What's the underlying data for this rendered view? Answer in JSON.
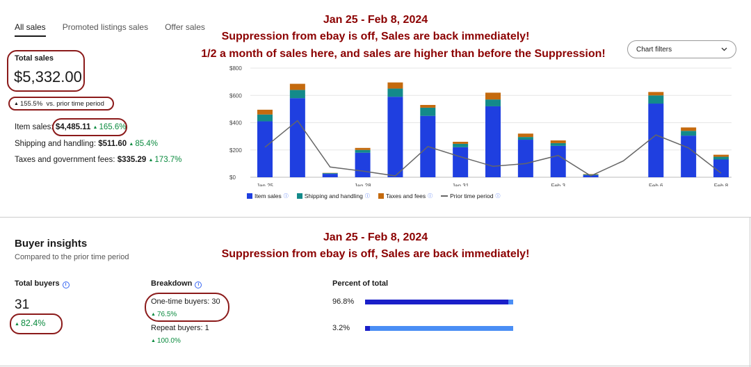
{
  "tabs": [
    {
      "label": "All sales",
      "active": true
    },
    {
      "label": "Promoted listings sales",
      "active": false
    },
    {
      "label": "Offer sales",
      "active": false
    }
  ],
  "annotation_top": {
    "line1": "Jan 25 - Feb 8, 2024",
    "line2": "Suppression from ebay is off, Sales are back immediately!",
    "line3": "1/2 a month of sales here, and sales are higher than before the Suppression!"
  },
  "annotation_bottom": {
    "line1": "Jan 25 - Feb 8, 2024",
    "line2": "Suppression from ebay is off, Sales are back immediately!"
  },
  "sales": {
    "total_label": "Total sales",
    "total_value": "$5,332.00",
    "change_pct": "155.5%",
    "change_suffix": "vs. prior time period",
    "item_label": "Item sales:",
    "item_value": "$4,485.11",
    "item_pct": "165.6%",
    "shipping_label": "Shipping and handling:",
    "shipping_value": "$511.60",
    "shipping_pct": "85.4%",
    "taxes_label": "Taxes and government fees:",
    "taxes_value": "$335.29",
    "taxes_pct": "173.7%"
  },
  "chart_filters": {
    "label": "Chart filters",
    "icon": "chevron-down-icon"
  },
  "colors": {
    "item": "#1f3fe0",
    "shipping": "#138a8a",
    "taxes": "#c46a0e",
    "prior": "#666666",
    "up": "#0a8a3e",
    "annot": "#8b0000"
  },
  "chart_data": {
    "type": "bar",
    "stacked": true,
    "ylim": [
      0,
      800
    ],
    "yticks": [
      "$0",
      "$200",
      "$400",
      "$600",
      "$800"
    ],
    "ytick_values": [
      0,
      200,
      400,
      600,
      800
    ],
    "x_tick_labels": [
      {
        "index": 0,
        "label": "Jan 25"
      },
      {
        "index": 3,
        "label": "Jan 28"
      },
      {
        "index": 6,
        "label": "Jan 31"
      },
      {
        "index": 9,
        "label": "Feb 3"
      },
      {
        "index": 12,
        "label": "Feb 6"
      },
      {
        "index": 14,
        "label": "Feb 8"
      }
    ],
    "categories": [
      "Jan 25",
      "Jan 26",
      "Jan 27",
      "Jan 28",
      "Jan 29",
      "Jan 30",
      "Jan 31",
      "Feb 1",
      "Feb 2",
      "Feb 3",
      "Feb 4",
      "Feb 5",
      "Feb 6",
      "Feb 7",
      "Feb 8"
    ],
    "series": [
      {
        "name": "Item sales",
        "values": [
          410,
          580,
          25,
          180,
          590,
          450,
          220,
          520,
          275,
          230,
          15,
          0,
          540,
          305,
          130
        ]
      },
      {
        "name": "Shipping and handling",
        "values": [
          50,
          60,
          5,
          20,
          60,
          60,
          25,
          50,
          20,
          20,
          5,
          0,
          60,
          35,
          20
        ]
      },
      {
        "name": "Taxes and fees",
        "values": [
          35,
          45,
          2,
          15,
          45,
          20,
          15,
          50,
          25,
          20,
          3,
          0,
          25,
          25,
          15
        ]
      }
    ],
    "prior": {
      "name": "Prior time period",
      "values": [
        220,
        415,
        75,
        45,
        10,
        225,
        150,
        80,
        100,
        160,
        10,
        120,
        310,
        215,
        30
      ]
    }
  },
  "buyers": {
    "title": "Buyer insights",
    "subtitle": "Compared to the prior time period",
    "total_label": "Total buyers",
    "total_value": "31",
    "total_pct": "82.4%",
    "breakdown_label": "Breakdown",
    "one_time_label": "One-time buyers: 30",
    "one_time_pct": "76.5%",
    "repeat_label": "Repeat buyers: 1",
    "repeat_pct": "100.0%",
    "percent_label": "Percent of total",
    "one_time_share_label": "96.8%",
    "one_time_share": 0.968,
    "repeat_share_label": "3.2%",
    "repeat_share": 0.032
  }
}
